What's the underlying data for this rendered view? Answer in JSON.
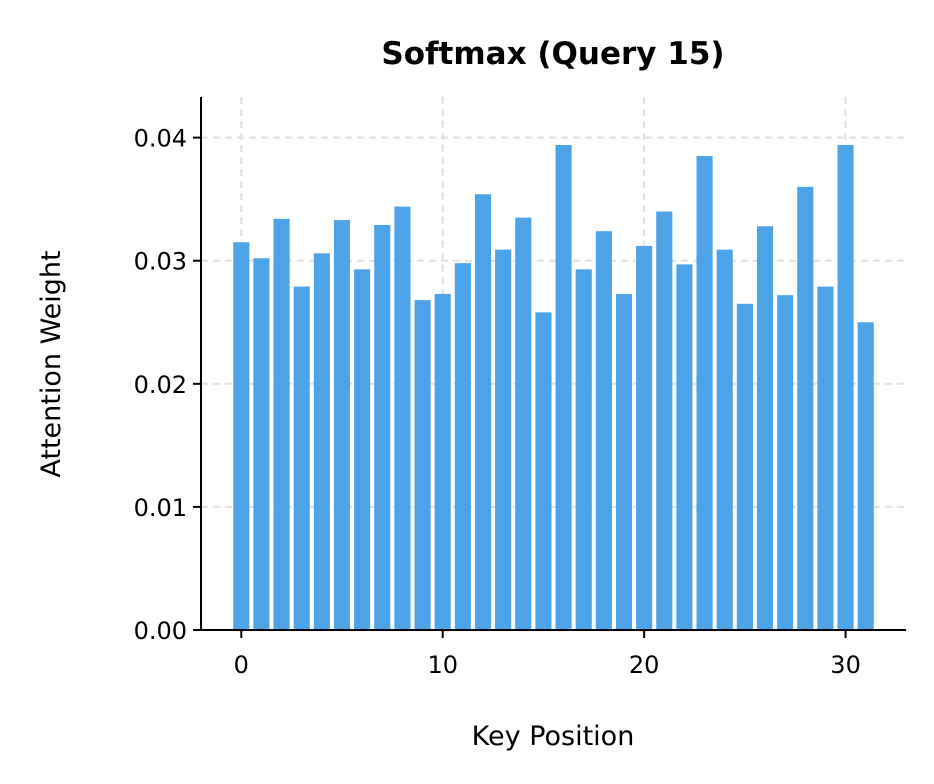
{
  "chart_data": {
    "type": "bar",
    "title": "Softmax (Query 15)",
    "xlabel": "Key Position",
    "ylabel": "Attention Weight",
    "x": [
      0,
      1,
      2,
      3,
      4,
      5,
      6,
      7,
      8,
      9,
      10,
      11,
      12,
      13,
      14,
      15,
      16,
      17,
      18,
      19,
      20,
      21,
      22,
      23,
      24,
      25,
      26,
      27,
      28,
      29,
      30,
      31
    ],
    "values": [
      0.0315,
      0.0302,
      0.0334,
      0.0279,
      0.0306,
      0.0333,
      0.0293,
      0.0329,
      0.0344,
      0.0268,
      0.0273,
      0.0298,
      0.0354,
      0.0309,
      0.0335,
      0.0258,
      0.0394,
      0.0293,
      0.0324,
      0.0273,
      0.0312,
      0.034,
      0.0297,
      0.0385,
      0.0309,
      0.0265,
      0.0328,
      0.0272,
      0.036,
      0.0279,
      0.0394,
      0.025
    ],
    "xlim": [
      -2,
      33
    ],
    "ylim": [
      0,
      0.0433
    ],
    "xticks": [
      0,
      10,
      20,
      30
    ],
    "xtick_labels": [
      "0",
      "10",
      "20",
      "30"
    ],
    "yticks": [
      0,
      0.01,
      0.02,
      0.03,
      0.04
    ],
    "ytick_labels": [
      "0.00",
      "0.01",
      "0.02",
      "0.03",
      "0.04"
    ],
    "grid": true,
    "bar_color": "#4da3e8"
  }
}
